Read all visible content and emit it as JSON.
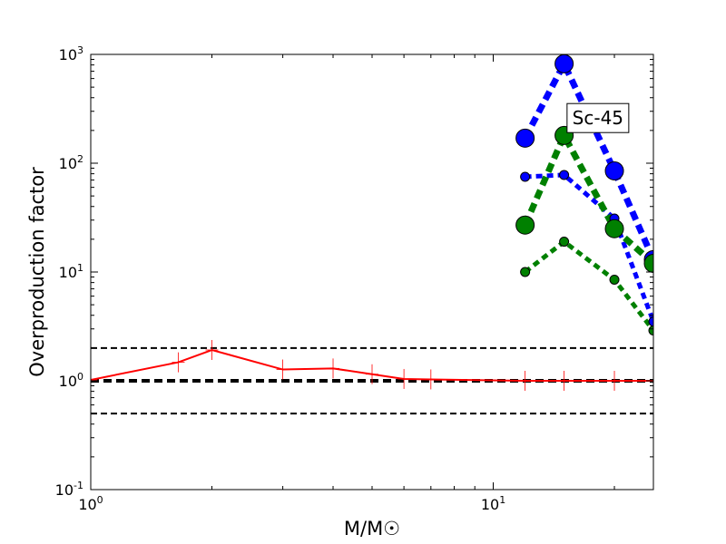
{
  "chart_data": {
    "type": "line",
    "title": "",
    "xlabel": "M/M☉",
    "ylabel": "Overproduction factor",
    "xscale": "log",
    "yscale": "log",
    "xlim": [
      1,
      25
    ],
    "ylim": [
      0.1,
      1000
    ],
    "x_ticks": [
      {
        "value": 1,
        "label": "10^0"
      },
      {
        "value": 10,
        "label": "10^1"
      }
    ],
    "y_ticks": [
      {
        "value": 0.1,
        "label": "10^-1"
      },
      {
        "value": 1,
        "label": "10^0"
      },
      {
        "value": 10,
        "label": "10^1"
      },
      {
        "value": 100,
        "label": "10^2"
      },
      {
        "value": 1000,
        "label": "10^3"
      }
    ],
    "annotations": [
      {
        "text": "Sc-45",
        "x": 18.2,
        "y": 260
      }
    ],
    "reference_lines": [
      {
        "y": 2.0,
        "color": "#000000",
        "style": "dashed",
        "weight": "thin"
      },
      {
        "y": 1.0,
        "color": "#000000",
        "style": "dashed",
        "weight": "thick"
      },
      {
        "y": 0.5,
        "color": "#000000",
        "style": "dashed",
        "weight": "thin"
      }
    ],
    "series": [
      {
        "color": "#ff0000",
        "style": "solid",
        "marker": "plus",
        "x": [
          1.0,
          1.65,
          2.0,
          3.0,
          4.0,
          5.0,
          6.0,
          7.0,
          12.0,
          15.0,
          20.0,
          25.0
        ],
        "y": [
          1.02,
          1.48,
          1.92,
          1.27,
          1.3,
          1.15,
          1.04,
          1.03,
          1.0,
          1.0,
          1.0,
          1.0
        ]
      },
      {
        "color": "#0000ff",
        "style": "dotted",
        "marker": "circle",
        "size": "large",
        "x": [
          12,
          15,
          20,
          25
        ],
        "y": [
          170,
          820,
          85,
          13
        ]
      },
      {
        "color": "#0000ff",
        "style": "dotted",
        "marker": "circle",
        "size": "small",
        "x": [
          12,
          15,
          20,
          25
        ],
        "y": [
          75,
          78,
          31,
          3.5
        ]
      },
      {
        "color": "#008000",
        "style": "dotted",
        "marker": "circle",
        "size": "large",
        "x": [
          12,
          15,
          20,
          25
        ],
        "y": [
          27,
          180,
          25,
          12
        ]
      },
      {
        "color": "#008000",
        "style": "dotted",
        "marker": "circle",
        "size": "small",
        "x": [
          12,
          15,
          20,
          25
        ],
        "y": [
          10,
          19,
          8.5,
          2.9
        ]
      }
    ]
  }
}
